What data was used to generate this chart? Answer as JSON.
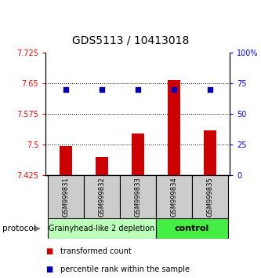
{
  "title": "GDS5113 / 10413018",
  "samples": [
    "GSM999831",
    "GSM999832",
    "GSM999833",
    "GSM999834",
    "GSM999835"
  ],
  "bar_values": [
    7.497,
    7.47,
    7.527,
    7.658,
    7.535
  ],
  "bar_bottom": 7.425,
  "percentile_values": [
    70,
    70,
    70,
    70,
    70
  ],
  "ylim_left": [
    7.425,
    7.725
  ],
  "ylim_right": [
    0,
    100
  ],
  "yticks_left": [
    7.425,
    7.5,
    7.575,
    7.65,
    7.725
  ],
  "yticks_left_labels": [
    "7.425",
    "7.5",
    "7.575",
    "7.65",
    "7.725"
  ],
  "yticks_right": [
    0,
    25,
    50,
    75,
    100
  ],
  "yticks_right_labels": [
    "0",
    "25",
    "50",
    "75",
    "100%"
  ],
  "bar_color": "#cc0000",
  "dot_color": "#0000bb",
  "grid_yticks": [
    7.5,
    7.575,
    7.65
  ],
  "group1_samples": [
    0,
    1,
    2
  ],
  "group2_samples": [
    3,
    4
  ],
  "group1_label": "Grainyhead-like 2 depletion",
  "group2_label": "control",
  "group1_color": "#bbffbb",
  "group2_color": "#44ee44",
  "sample_box_color": "#cccccc",
  "protocol_label": "protocol",
  "legend_bar_label": "transformed count",
  "legend_dot_label": "percentile rank within the sample",
  "title_fontsize": 10,
  "tick_fontsize": 7,
  "sample_fontsize": 6,
  "group_fontsize": 7
}
